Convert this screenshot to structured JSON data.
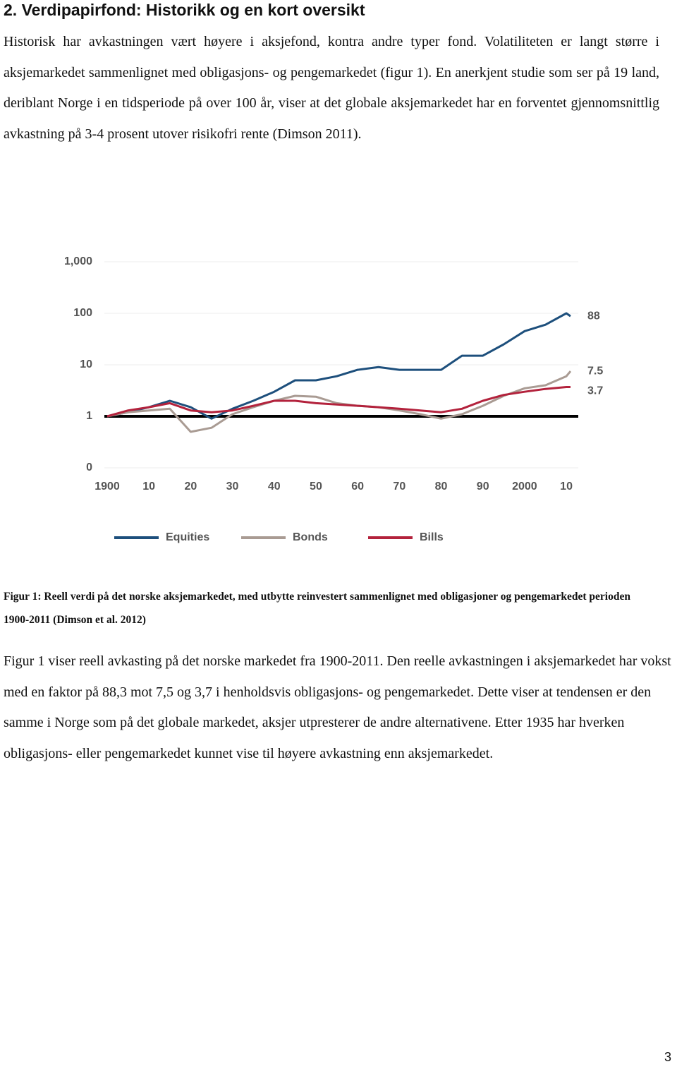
{
  "header": {
    "title": "2. Verdipapirfond: Historikk og en kort oversikt"
  },
  "body": [
    "Historisk har avkastningen vært høyere i aksjefond, kontra andre typer fond. Volatiliteten er langt større i aksjemarkedet sammenlignet med obligasjons- og pengemarkedet (figur 1). En anerkjent studie som ser på 19 land, deriblant Norge i en tidsperiode på over 100 år, viser at det globale aksjemarkedet har en forventet gjennomsnittlig avkastning på 3-4 prosent utover risikofri rente (Dimson 2011).",
    "Figur 1 viser reell avkasting på det norske markedet fra 1900-2011. Den reelle avkastningen i aksjemarkedet har vokst med en faktor på 88,3 mot 7,5 og 3,7 i henholdsvis obligasjons- og pengemarkedet. Dette viser at tendensen er den samme i Norge som på det globale markedet, aksjer utpresterer de andre alternativene. Etter 1935 har hverken obligasjons- eller pengemarkedet kunnet vise til høyere avkastning enn aksjemarkedet."
  ],
  "caption": "Figur 1: Reell verdi på det norske aksjemarkedet, med utbytte reinvestert sammenlignet med obligasjoner og pengemarkedet perioden 1900-2011 (Dimson et al. 2012)",
  "page_number": "3",
  "chart_data": {
    "type": "line",
    "x": [
      1900,
      1905,
      1910,
      1915,
      1920,
      1925,
      1930,
      1935,
      1940,
      1945,
      1950,
      1955,
      1960,
      1965,
      1970,
      1975,
      1980,
      1985,
      1990,
      1995,
      2000,
      2005,
      2010,
      2011
    ],
    "series": [
      {
        "name": "Equities",
        "color": "#1d4f7c",
        "values": [
          1,
          1.2,
          1.5,
          2,
          1.5,
          0.9,
          1.4,
          2,
          3,
          5,
          5,
          6,
          8,
          9,
          8,
          8,
          8,
          15,
          15,
          25,
          45,
          60,
          100,
          88
        ]
      },
      {
        "name": "Bonds",
        "color": "#a99b93",
        "values": [
          1,
          1.2,
          1.3,
          1.4,
          0.5,
          0.6,
          1.1,
          1.5,
          2,
          2.5,
          2.4,
          1.8,
          1.6,
          1.5,
          1.3,
          1.1,
          0.9,
          1.1,
          1.6,
          2.5,
          3.5,
          4,
          6,
          7.5
        ]
      },
      {
        "name": "Bills",
        "color": "#b3223c",
        "values": [
          1,
          1.3,
          1.5,
          1.8,
          1.3,
          1.2,
          1.3,
          1.6,
          2,
          2,
          1.8,
          1.7,
          1.6,
          1.5,
          1.4,
          1.3,
          1.2,
          1.4,
          2,
          2.6,
          3,
          3.4,
          3.7,
          3.7
        ]
      }
    ],
    "xlim": [
      1900,
      2011
    ],
    "xticks": [
      1900,
      {
        "value": 1910,
        "label": "10"
      },
      {
        "value": 1920,
        "label": "20"
      },
      {
        "value": 1930,
        "label": "30"
      },
      {
        "value": 1940,
        "label": "40"
      },
      {
        "value": 1950,
        "label": "50"
      },
      {
        "value": 1960,
        "label": "60"
      },
      {
        "value": 1970,
        "label": "70"
      },
      {
        "value": 1980,
        "label": "80"
      },
      {
        "value": 1990,
        "label": "90"
      },
      2000,
      {
        "value": 2010,
        "label": "10"
      }
    ],
    "ylim": [
      0.1,
      1000
    ],
    "yticks": [
      {
        "value": 0.1,
        "label": "0"
      },
      1,
      10,
      100,
      {
        "value": 1000,
        "label": "1,000"
      }
    ],
    "log_scale": true,
    "grid": true,
    "hline": 1,
    "legend": "bottom"
  }
}
